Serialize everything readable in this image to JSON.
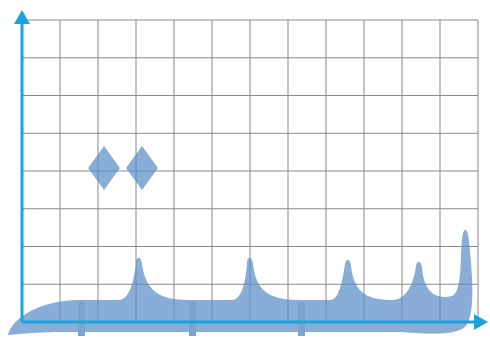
{
  "colors": {
    "axis": "#1aa3e0",
    "grid": "#8a8a8a",
    "glyph_fill": "#5b8ec7",
    "glyph_opacity": 0.72,
    "mark_fill": "#4a7fbd"
  },
  "grid": {
    "columns": 12,
    "rows": 8
  },
  "glyph": {
    "description_icon": "arabic-calligraphy-stroke-icon",
    "dots": 2
  }
}
